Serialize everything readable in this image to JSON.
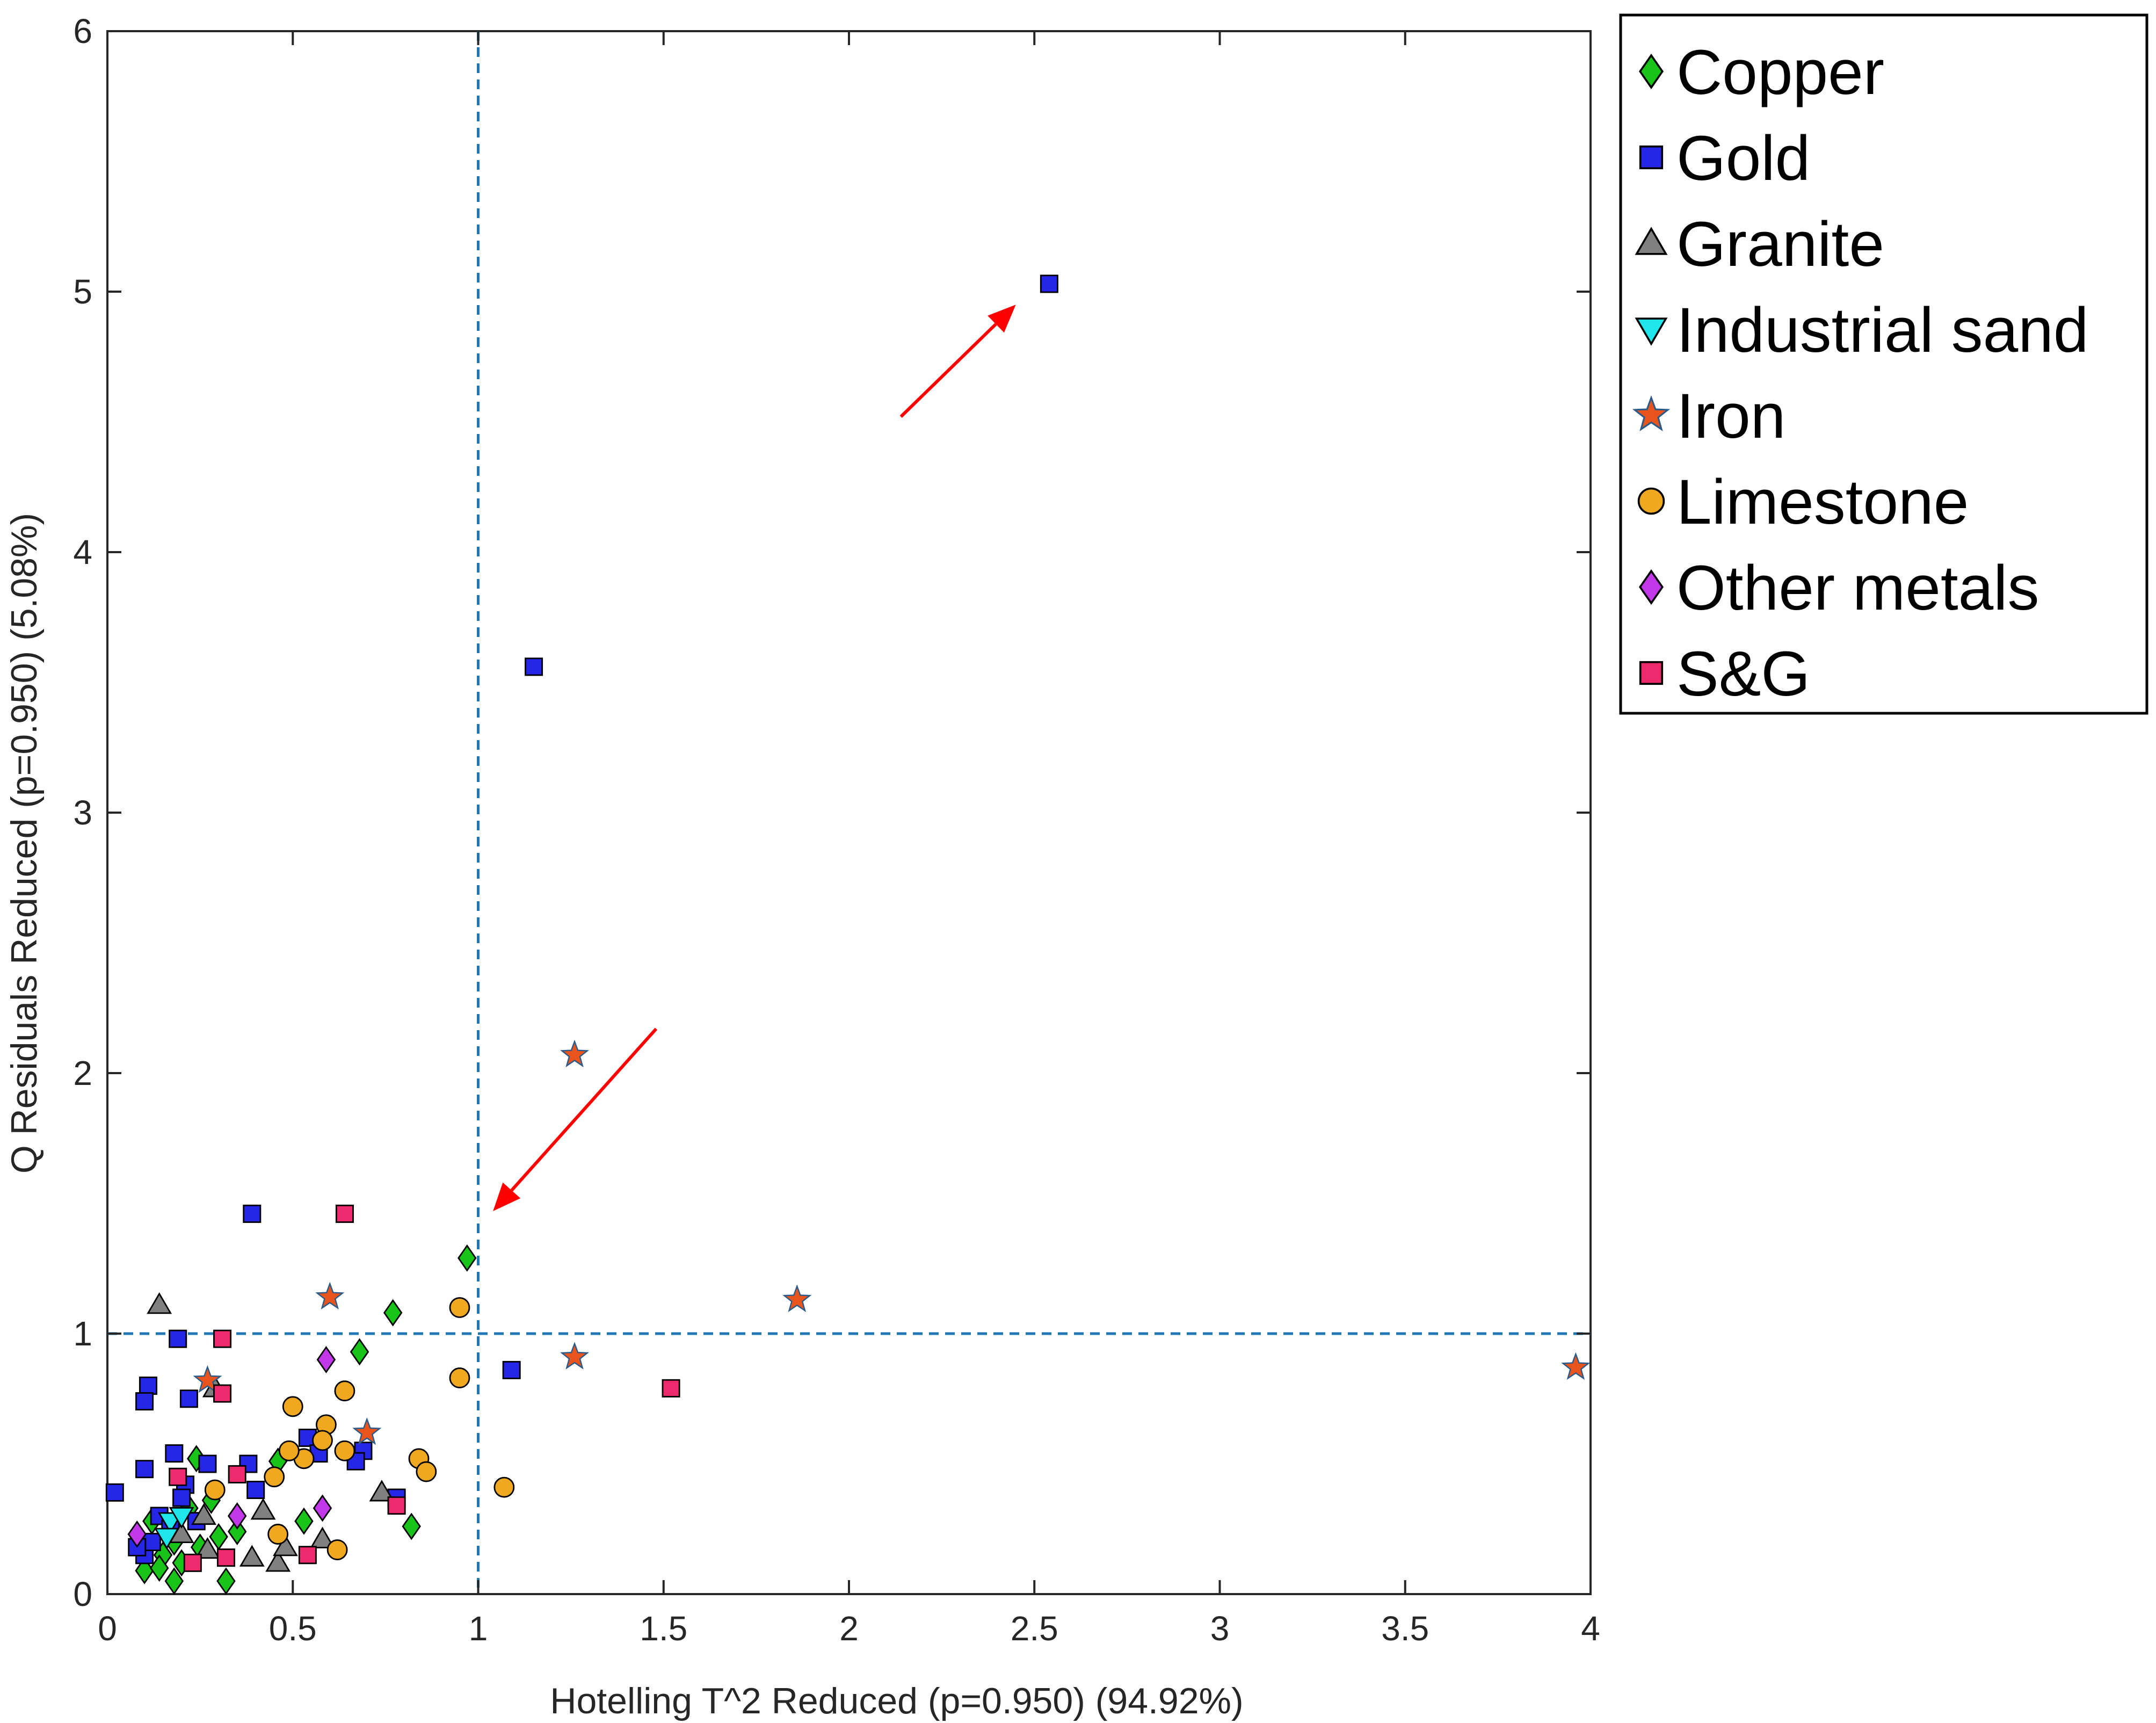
{
  "chart_data": {
    "type": "scatter",
    "title": "",
    "xlabel": "Hotelling T^2 Reduced (p=0.950) (94.92%)",
    "ylabel": "Q Residuals Reduced (p=0.950) (5.08%)",
    "xlim": [
      0,
      4
    ],
    "ylim": [
      0,
      6
    ],
    "xticks": [
      0,
      0.5,
      1,
      1.5,
      2,
      2.5,
      3,
      3.5,
      4
    ],
    "xtick_labels": [
      "0",
      "0.5",
      "1",
      "1.5",
      "2",
      "2.5",
      "3",
      "3.5",
      "4"
    ],
    "yticks": [
      0,
      1,
      2,
      3,
      4,
      5,
      6
    ],
    "ytick_labels": [
      "0",
      "1",
      "2",
      "3",
      "4",
      "5",
      "6"
    ],
    "grid": false,
    "legend_position": "outside-top-right",
    "limit_lines": {
      "t2_limit_x": 1,
      "q_limit_y": 1,
      "color": "#1f77b4"
    },
    "annotations": [
      {
        "type": "arrow",
        "from": [
          2.14,
          4.52
        ],
        "to": [
          2.45,
          4.95
        ],
        "color": "#ff0000"
      },
      {
        "type": "arrow",
        "from": [
          1.48,
          2.17
        ],
        "to": [
          1.04,
          1.47
        ],
        "color": "#ff0000"
      }
    ],
    "series": [
      {
        "name": "Copper",
        "marker": "diamond",
        "color": "#18c418",
        "points": [
          [
            0.97,
            1.29
          ],
          [
            0.77,
            1.08
          ],
          [
            0.68,
            0.93
          ],
          [
            0.46,
            0.51
          ],
          [
            0.24,
            0.52
          ],
          [
            0.53,
            0.28
          ],
          [
            0.82,
            0.26
          ],
          [
            0.32,
            0.05
          ],
          [
            0.18,
            0.05
          ],
          [
            0.1,
            0.09
          ],
          [
            0.2,
            0.12
          ],
          [
            0.15,
            0.15
          ],
          [
            0.25,
            0.18
          ],
          [
            0.3,
            0.22
          ],
          [
            0.12,
            0.28
          ],
          [
            0.22,
            0.33
          ],
          [
            0.35,
            0.24
          ],
          [
            0.28,
            0.36
          ],
          [
            0.18,
            0.2
          ],
          [
            0.14,
            0.1
          ]
        ]
      },
      {
        "name": "Gold",
        "marker": "square",
        "color": "#2626e6",
        "points": [
          [
            2.54,
            5.03
          ],
          [
            1.15,
            3.56
          ],
          [
            0.39,
            1.46
          ],
          [
            0.19,
            0.98
          ],
          [
            1.09,
            0.86
          ],
          [
            0.11,
            0.8
          ],
          [
            0.1,
            0.74
          ],
          [
            0.22,
            0.75
          ],
          [
            0.69,
            0.55
          ],
          [
            0.67,
            0.51
          ],
          [
            0.18,
            0.54
          ],
          [
            0.38,
            0.5
          ],
          [
            0.27,
            0.5
          ],
          [
            0.1,
            0.48
          ],
          [
            0.54,
            0.6
          ],
          [
            0.57,
            0.54
          ],
          [
            0.02,
            0.39
          ],
          [
            0.21,
            0.42
          ],
          [
            0.4,
            0.4
          ],
          [
            0.2,
            0.37
          ],
          [
            0.14,
            0.3
          ],
          [
            0.1,
            0.15
          ],
          [
            0.12,
            0.2
          ],
          [
            0.17,
            0.25
          ],
          [
            0.24,
            0.28
          ],
          [
            0.08,
            0.18
          ],
          [
            0.78,
            0.37
          ]
        ]
      },
      {
        "name": "Granite",
        "marker": "triangle-up",
        "color": "#808080",
        "points": [
          [
            0.14,
            1.11
          ],
          [
            0.29,
            0.79
          ],
          [
            0.74,
            0.39
          ],
          [
            0.42,
            0.32
          ],
          [
            0.26,
            0.3
          ],
          [
            0.27,
            0.17
          ],
          [
            0.39,
            0.14
          ],
          [
            0.46,
            0.12
          ],
          [
            0.58,
            0.21
          ],
          [
            0.2,
            0.23
          ],
          [
            0.48,
            0.18
          ]
        ]
      },
      {
        "name": "Industrial sand",
        "marker": "triangle-down",
        "color": "#1ee6ea",
        "points": [
          [
            0.17,
            0.28
          ],
          [
            0.2,
            0.3
          ],
          [
            0.16,
            0.22
          ]
        ]
      },
      {
        "name": "Iron",
        "marker": "star",
        "color": "#e8541c",
        "points": [
          [
            1.26,
            2.07
          ],
          [
            0.6,
            1.14
          ],
          [
            1.86,
            1.13
          ],
          [
            1.26,
            0.91
          ],
          [
            3.96,
            0.87
          ],
          [
            0.27,
            0.82
          ],
          [
            0.7,
            0.62
          ]
        ]
      },
      {
        "name": "Limestone",
        "marker": "circle",
        "color": "#f0a820",
        "points": [
          [
            0.95,
            1.1
          ],
          [
            0.95,
            0.83
          ],
          [
            0.5,
            0.72
          ],
          [
            0.64,
            0.78
          ],
          [
            0.59,
            0.65
          ],
          [
            0.58,
            0.59
          ],
          [
            0.53,
            0.52
          ],
          [
            0.64,
            0.55
          ],
          [
            0.49,
            0.55
          ],
          [
            0.84,
            0.52
          ],
          [
            0.86,
            0.47
          ],
          [
            0.45,
            0.45
          ],
          [
            1.07,
            0.41
          ],
          [
            0.29,
            0.4
          ],
          [
            0.46,
            0.23
          ],
          [
            0.62,
            0.17
          ]
        ]
      },
      {
        "name": "Other metals",
        "marker": "diamond",
        "color": "#c238e8",
        "points": [
          [
            0.59,
            0.9
          ],
          [
            0.58,
            0.33
          ],
          [
            0.35,
            0.3
          ],
          [
            0.08,
            0.23
          ]
        ]
      },
      {
        "name": "S&G",
        "marker": "square",
        "color": "#ee2a6e",
        "points": [
          [
            0.64,
            1.46
          ],
          [
            0.31,
            0.98
          ],
          [
            1.52,
            0.79
          ],
          [
            0.31,
            0.77
          ],
          [
            0.35,
            0.46
          ],
          [
            0.19,
            0.45
          ],
          [
            0.78,
            0.34
          ],
          [
            0.54,
            0.15
          ],
          [
            0.23,
            0.12
          ],
          [
            0.32,
            0.14
          ]
        ]
      }
    ]
  }
}
